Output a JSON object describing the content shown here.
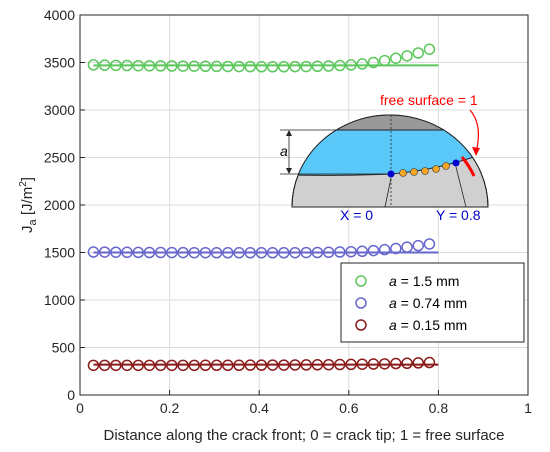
{
  "chart_data": {
    "type": "scatter",
    "xlabel": "Distance along the crack front; 0 = crack tip; 1 = free surface",
    "ylabel_main": "J",
    "ylabel_sub": "a",
    "ylabel_units": "[J/m",
    "ylabel_exp": "2",
    "ylabel_close": "]",
    "xlim": [
      0,
      1
    ],
    "ylim": [
      0,
      4000
    ],
    "xticks": [
      0,
      0.2,
      0.4,
      0.6,
      0.8,
      1
    ],
    "xtick_labels": [
      "0",
      "0.2",
      "0.4",
      "0.6",
      "0.8",
      "1"
    ],
    "yticks": [
      0,
      500,
      1000,
      1500,
      2000,
      2500,
      3000,
      3500,
      4000
    ],
    "ytick_labels": [
      "0",
      "500",
      "1000",
      "1500",
      "2000",
      "2500",
      "3000",
      "3500",
      "4000"
    ],
    "grid": true,
    "legend_position": "bottom-right",
    "x": [
      0.03,
      0.055,
      0.08,
      0.105,
      0.13,
      0.155,
      0.18,
      0.205,
      0.23,
      0.255,
      0.28,
      0.305,
      0.33,
      0.355,
      0.38,
      0.405,
      0.43,
      0.455,
      0.48,
      0.505,
      0.53,
      0.555,
      0.58,
      0.605,
      0.63,
      0.655,
      0.68,
      0.705,
      0.73,
      0.755,
      0.78
    ],
    "series": [
      {
        "name_italic": "a",
        "name_rest": " = 1.5 mm",
        "color": "#5cc85c",
        "fit_y": 3470,
        "values": [
          3475,
          3472,
          3470,
          3468,
          3466,
          3465,
          3464,
          3463,
          3462,
          3461,
          3460,
          3459,
          3458,
          3457,
          3456,
          3455,
          3455,
          3455,
          3456,
          3457,
          3460,
          3463,
          3468,
          3475,
          3485,
          3500,
          3520,
          3545,
          3570,
          3600,
          3640
        ]
      },
      {
        "name_italic": "a",
        "name_rest": " = 0.74 mm",
        "color": "#6666cc",
        "fit_y": 1500,
        "values": [
          1505,
          1504,
          1503,
          1502,
          1501,
          1500,
          1500,
          1499,
          1499,
          1498,
          1498,
          1497,
          1497,
          1497,
          1497,
          1497,
          1497,
          1497,
          1498,
          1499,
          1500,
          1502,
          1505,
          1508,
          1513,
          1520,
          1530,
          1542,
          1556,
          1572,
          1590
        ]
      },
      {
        "name_italic": "a",
        "name_rest": " = 0.15 mm",
        "color": "#8b1a1a",
        "fit_y": 320,
        "values": [
          312,
          312,
          312,
          312,
          312,
          312,
          312,
          312,
          312,
          312,
          313,
          313,
          313,
          313,
          314,
          314,
          315,
          315,
          316,
          317,
          318,
          319,
          321,
          322,
          324,
          326,
          328,
          331,
          334,
          338,
          342
        ]
      }
    ],
    "inset": {
      "free_surface_label": "free surface = 1",
      "a_label": "a",
      "x0_label": "X = 0",
      "y08_label": "Y = 0.8",
      "color_free_surface": "#ff0000",
      "color_endpoints": "#0000cc",
      "color_points": "#f5a623",
      "color_crack": "#5bc8fa",
      "color_dark": "#999999",
      "color_body": "#d0d0d0"
    }
  }
}
